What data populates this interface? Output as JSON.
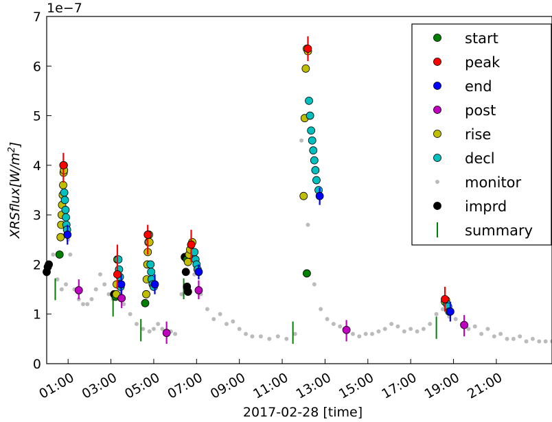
{
  "chart_data": {
    "type": "scatter",
    "title": "",
    "xlabel": "2017-02-28 [time]",
    "ylabel": "XRSflux[W/m²]",
    "ylabel_parts": {
      "main": "XRSflux[W/m",
      "sup": "2",
      "end": "]"
    },
    "y_exponent": "1e−7",
    "xlim": [
      0.0,
      23.6
    ],
    "ylim": [
      0,
      7
    ],
    "y_scale_note": "values x 1e-7 W/m^2",
    "yticks": [
      0,
      1,
      2,
      3,
      4,
      5,
      6,
      7
    ],
    "xticks": [
      {
        "hour": 1,
        "label": "01:00"
      },
      {
        "hour": 3,
        "label": "03:00"
      },
      {
        "hour": 5,
        "label": "05:00"
      },
      {
        "hour": 7,
        "label": "07:00"
      },
      {
        "hour": 9,
        "label": "09:00"
      },
      {
        "hour": 11,
        "label": "11:00"
      },
      {
        "hour": 13,
        "label": "13:00"
      },
      {
        "hour": 15,
        "label": "15:00"
      },
      {
        "hour": 17,
        "label": "17:00"
      },
      {
        "hour": 19,
        "label": "19:00"
      },
      {
        "hour": 21,
        "label": "21:00"
      }
    ],
    "grid": false,
    "legend_position": "top-right",
    "legend": [
      {
        "label": "start",
        "marker": "circle",
        "color": "#008000"
      },
      {
        "label": "peak",
        "marker": "circle",
        "color": "#ff0000"
      },
      {
        "label": "end",
        "marker": "circle",
        "color": "#0000ff"
      },
      {
        "label": "post",
        "marker": "circle",
        "color": "#bf00bf"
      },
      {
        "label": "rise",
        "marker": "circle",
        "color": "#bfbf00"
      },
      {
        "label": "decl",
        "marker": "circle",
        "color": "#00bfbf"
      },
      {
        "label": "monitor",
        "marker": "small-dot",
        "color": "#bbbbbb"
      },
      {
        "label": "imprd",
        "marker": "circle",
        "color": "#000000"
      },
      {
        "label": "summary",
        "marker": "vline",
        "color": "#008000"
      }
    ],
    "monitor": {
      "color": "#bbbbbb",
      "x": [
        0.0,
        0.3,
        0.5,
        0.7,
        0.9,
        1.0,
        1.1,
        1.3,
        1.5,
        1.7,
        1.9,
        2.1,
        2.3,
        2.5,
        2.7,
        2.9,
        3.1,
        3.3,
        3.6,
        3.9,
        4.2,
        4.5,
        4.8,
        5.0,
        5.2,
        5.4,
        5.6,
        5.8,
        6.0,
        6.3,
        6.6,
        6.9,
        7.2,
        7.5,
        7.8,
        8.1,
        8.4,
        8.7,
        9.0,
        9.3,
        9.6,
        10.0,
        10.4,
        10.8,
        11.2,
        11.6,
        11.9,
        12.2,
        12.5,
        12.8,
        13.1,
        13.4,
        13.7,
        14.0,
        14.3,
        14.6,
        14.9,
        15.2,
        15.5,
        15.8,
        16.1,
        16.4,
        16.7,
        17.0,
        17.3,
        17.6,
        17.9,
        18.2,
        18.5,
        18.8,
        19.1,
        19.4,
        19.7,
        20.0,
        20.3,
        20.6,
        20.9,
        21.2,
        21.5,
        21.8,
        22.1,
        22.4,
        22.7,
        23.0,
        23.3,
        23.6
      ],
      "y": [
        1.8,
        2.2,
        1.7,
        1.5,
        1.6,
        2.5,
        2.2,
        1.5,
        1.3,
        1.2,
        1.2,
        1.3,
        1.5,
        1.8,
        1.6,
        1.4,
        1.3,
        1.4,
        1.2,
        1.0,
        0.8,
        0.7,
        0.65,
        0.7,
        0.8,
        0.7,
        0.6,
        0.65,
        0.6,
        1.4,
        1.6,
        1.8,
        1.4,
        1.1,
        0.9,
        1.0,
        0.8,
        0.85,
        0.7,
        0.6,
        0.55,
        0.55,
        0.5,
        0.55,
        0.5,
        0.6,
        4.5,
        2.8,
        1.6,
        1.1,
        0.9,
        0.8,
        0.75,
        0.65,
        0.6,
        0.55,
        0.6,
        0.6,
        0.65,
        0.7,
        0.8,
        0.75,
        0.65,
        0.7,
        0.65,
        0.7,
        0.8,
        1.0,
        1.1,
        0.95,
        0.9,
        0.8,
        0.7,
        0.75,
        0.6,
        0.7,
        0.55,
        0.6,
        0.5,
        0.5,
        0.55,
        0.45,
        0.5,
        0.45,
        0.45,
        0.45
      ]
    },
    "rise": {
      "color": "#bfbf00",
      "x": [
        0.65,
        0.68,
        0.7,
        0.72,
        0.75,
        0.77,
        0.79,
        0.8,
        0.81,
        3.25,
        3.27,
        3.3,
        4.65,
        4.67,
        4.7,
        4.72,
        4.75,
        4.78,
        4.8,
        6.6,
        6.65,
        6.7,
        6.75,
        6.8,
        12.0,
        12.05,
        12.1,
        12.15,
        12.2,
        18.6,
        18.65
      ],
      "y": [
        2.55,
        2.8,
        3.0,
        3.2,
        3.4,
        3.6,
        3.85,
        4.0,
        3.9,
        1.4,
        1.6,
        2.1,
        1.4,
        1.7,
        2.0,
        2.25,
        2.45,
        2.6,
        2.45,
        2.05,
        2.2,
        2.3,
        2.4,
        2.45,
        3.38,
        4.95,
        5.95,
        6.35,
        6.3,
        1.25,
        1.28
      ]
    },
    "decl": {
      "color": "#00bfbf",
      "x": [
        0.82,
        0.85,
        0.88,
        0.9,
        0.92,
        0.95,
        3.35,
        3.38,
        3.42,
        3.45,
        4.85,
        4.88,
        4.9,
        4.95,
        5.0,
        6.9,
        6.95,
        7.0,
        7.05,
        12.25,
        12.3,
        12.35,
        12.4,
        12.45,
        12.5,
        12.55,
        12.6,
        12.7,
        18.7,
        18.75,
        18.8
      ],
      "y": [
        3.45,
        3.3,
        3.1,
        2.95,
        2.8,
        2.7,
        2.1,
        1.9,
        1.75,
        1.55,
        2.0,
        1.85,
        1.7,
        1.6,
        1.55,
        2.25,
        2.1,
        2.0,
        1.9,
        5.3,
        5.0,
        4.7,
        4.5,
        4.3,
        4.1,
        3.9,
        3.7,
        3.5,
        1.2,
        1.15,
        1.05
      ]
    },
    "start": {
      "color": "#008000",
      "x": [
        0.6,
        3.22,
        4.6,
        6.55,
        12.15
      ],
      "y": [
        2.2,
        1.35,
        1.22,
        2.1,
        1.82
      ]
    },
    "peak": {
      "color": "#ff0000",
      "x": [
        0.78,
        3.3,
        4.72,
        6.75,
        12.2,
        18.6
      ],
      "y": [
        4.0,
        1.8,
        2.6,
        2.4,
        6.35,
        1.3
      ]
    },
    "peak_error": {
      "color": "#ff0000",
      "x": [
        0.78,
        3.3,
        4.72,
        6.75,
        12.2,
        18.6
      ],
      "ylow": [
        3.65,
        1.5,
        2.2,
        2.05,
        6.1,
        1.05
      ],
      "yhigh": [
        4.25,
        2.4,
        2.8,
        2.7,
        6.6,
        1.55
      ]
    },
    "end": {
      "color": "#0000ff",
      "x": [
        0.97,
        3.48,
        5.05,
        7.1,
        12.75,
        18.85
      ],
      "y": [
        2.6,
        1.6,
        1.6,
        1.85,
        3.38,
        1.05
      ]
    },
    "end_error": {
      "color": "#0000ff",
      "x": [
        0.97,
        3.48,
        5.05,
        7.1,
        12.75,
        18.85
      ],
      "ylow": [
        2.4,
        1.4,
        1.4,
        1.7,
        3.2,
        0.85
      ],
      "yhigh": [
        2.8,
        1.8,
        1.8,
        2.0,
        3.55,
        1.25
      ]
    },
    "post": {
      "color": "#bf00bf",
      "x": [
        1.5,
        3.5,
        5.6,
        7.1,
        14.0,
        19.5
      ],
      "y": [
        1.48,
        1.32,
        0.62,
        1.48,
        0.68,
        0.78
      ]
    },
    "post_error": {
      "color": "#bf00bf",
      "x": [
        1.5,
        3.5,
        5.6,
        7.1,
        14.0,
        19.5
      ],
      "ylow": [
        1.3,
        1.12,
        0.4,
        1.3,
        0.45,
        0.55
      ],
      "yhigh": [
        1.7,
        1.52,
        0.85,
        1.68,
        0.88,
        0.98
      ]
    },
    "imprd": {
      "color": "#000000",
      "x": [
        0.0,
        0.05,
        0.1,
        3.15,
        6.45,
        6.5,
        6.55,
        6.6
      ],
      "y": [
        1.85,
        1.95,
        2.0,
        1.4,
        2.15,
        1.85,
        1.55,
        1.45
      ]
    },
    "summary": {
      "color": "#008000",
      "x": [
        0.4,
        3.1,
        4.4,
        6.4,
        11.5,
        18.2
      ],
      "ylow": [
        1.28,
        0.95,
        0.45,
        1.3,
        0.4,
        0.5
      ],
      "yhigh": [
        1.72,
        1.45,
        0.9,
        1.72,
        0.85,
        0.95
      ]
    }
  }
}
